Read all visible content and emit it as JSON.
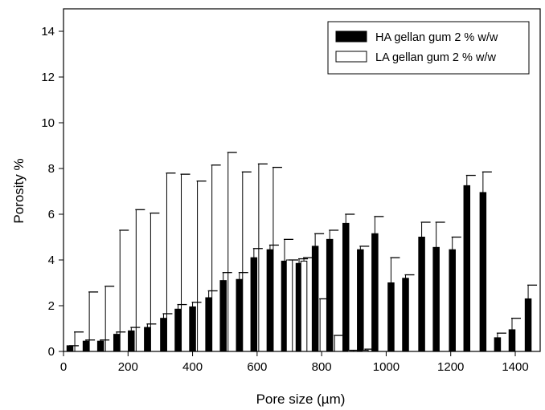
{
  "chart_data": {
    "type": "bar",
    "xlabel": "Pore size (µm)",
    "ylabel": "Porosity %",
    "xlim": [
      0,
      1440
    ],
    "ylim": [
      0,
      15
    ],
    "x_ticks": [
      0,
      200,
      400,
      600,
      800,
      1000,
      1200,
      1400
    ],
    "y_ticks": [
      0,
      2,
      4,
      6,
      8,
      10,
      12,
      14
    ],
    "legend_position": "top-right",
    "error_bars": "upper",
    "series": [
      {
        "name": "HA gellan gum 2 % w/w",
        "fill": "#000000",
        "points": [
          {
            "x": 20,
            "y": 0.25,
            "err": 0.0
          },
          {
            "x": 70,
            "y": 0.45,
            "err": 0.05
          },
          {
            "x": 115,
            "y": 0.45,
            "err": 0.05
          },
          {
            "x": 165,
            "y": 0.75,
            "err": 0.1
          },
          {
            "x": 210,
            "y": 0.9,
            "err": 0.15
          },
          {
            "x": 260,
            "y": 1.05,
            "err": 0.15
          },
          {
            "x": 310,
            "y": 1.45,
            "err": 0.2
          },
          {
            "x": 355,
            "y": 1.85,
            "err": 0.2
          },
          {
            "x": 400,
            "y": 1.95,
            "err": 0.2
          },
          {
            "x": 450,
            "y": 2.35,
            "err": 0.3
          },
          {
            "x": 495,
            "y": 3.1,
            "err": 0.35
          },
          {
            "x": 545,
            "y": 3.15,
            "err": 0.3
          },
          {
            "x": 590,
            "y": 4.1,
            "err": 0.4
          },
          {
            "x": 640,
            "y": 4.45,
            "err": 0.2
          },
          {
            "x": 685,
            "y": 3.95,
            "err": 0.95
          },
          {
            "x": 730,
            "y": 3.85,
            "err": 0.2
          },
          {
            "x": 780,
            "y": 4.6,
            "err": 0.55
          },
          {
            "x": 825,
            "y": 4.9,
            "err": 0.4
          },
          {
            "x": 875,
            "y": 5.6,
            "err": 0.4
          },
          {
            "x": 920,
            "y": 4.45,
            "err": 0.15
          },
          {
            "x": 965,
            "y": 5.15,
            "err": 0.75
          },
          {
            "x": 1015,
            "y": 3.0,
            "err": 1.1
          },
          {
            "x": 1060,
            "y": 3.2,
            "err": 0.15
          },
          {
            "x": 1110,
            "y": 5.0,
            "err": 0.65
          },
          {
            "x": 1155,
            "y": 4.55,
            "err": 1.1
          },
          {
            "x": 1205,
            "y": 4.45,
            "err": 0.55
          },
          {
            "x": 1250,
            "y": 7.25,
            "err": 0.45
          },
          {
            "x": 1300,
            "y": 6.95,
            "err": 0.9
          },
          {
            "x": 1345,
            "y": 0.6,
            "err": 0.2
          },
          {
            "x": 1390,
            "y": 0.95,
            "err": 0.5
          },
          {
            "x": 1440,
            "y": 2.3,
            "err": 0.6
          }
        ]
      },
      {
        "name": "LA gellan gum 2 % w/w",
        "fill": "#ffffff",
        "points": [
          {
            "x": 35,
            "y": 0.0,
            "err": 0.85
          },
          {
            "x": 80,
            "y": 0.0,
            "err": 2.6
          },
          {
            "x": 130,
            "y": 0.0,
            "err": 2.85
          },
          {
            "x": 175,
            "y": 0.0,
            "err": 5.3
          },
          {
            "x": 225,
            "y": 0.0,
            "err": 6.2
          },
          {
            "x": 270,
            "y": 0.0,
            "err": 6.05
          },
          {
            "x": 320,
            "y": 0.0,
            "err": 7.8
          },
          {
            "x": 365,
            "y": 0.0,
            "err": 7.75
          },
          {
            "x": 415,
            "y": 0.0,
            "err": 7.45
          },
          {
            "x": 460,
            "y": 0.0,
            "err": 8.15
          },
          {
            "x": 510,
            "y": 0.0,
            "err": 8.7
          },
          {
            "x": 555,
            "y": 0.0,
            "err": 7.85
          },
          {
            "x": 605,
            "y": 0.0,
            "err": 8.2
          },
          {
            "x": 650,
            "y": 0.0,
            "err": 8.05
          },
          {
            "x": 700,
            "y": 4.0,
            "err": 0.0
          },
          {
            "x": 745,
            "y": 3.95,
            "err": 0.15
          },
          {
            "x": 795,
            "y": 0.0,
            "err": 2.3
          },
          {
            "x": 840,
            "y": 0.0,
            "err": 0.7
          },
          {
            "x": 890,
            "y": 0.05,
            "err": 0.0
          },
          {
            "x": 935,
            "y": 0.05,
            "err": 0.05
          }
        ]
      }
    ]
  }
}
